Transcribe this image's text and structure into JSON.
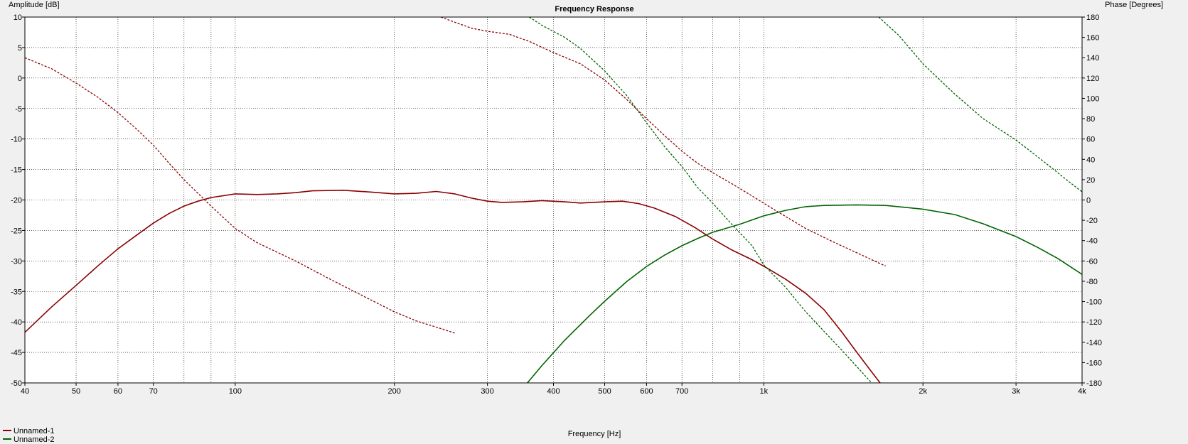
{
  "chart_data": {
    "type": "line",
    "title": "Frequency Response",
    "xlabel": "Frequency [Hz]",
    "ylabel": "Amplitude [dB]",
    "y2label": "Phase [Degrees]",
    "x_scale": "log",
    "xlim": [
      40,
      4000
    ],
    "ylim": [
      -50,
      10
    ],
    "y2lim": [
      -180,
      180
    ],
    "grid": true,
    "legend_position": "bottom-left",
    "x_ticks": [
      {
        "value": 40,
        "label": "40"
      },
      {
        "value": 50,
        "label": "50"
      },
      {
        "value": 60,
        "label": "60"
      },
      {
        "value": 70,
        "label": "70"
      },
      {
        "value": 100,
        "label": "100"
      },
      {
        "value": 200,
        "label": "200"
      },
      {
        "value": 300,
        "label": "300"
      },
      {
        "value": 400,
        "label": "400"
      },
      {
        "value": 500,
        "label": "500"
      },
      {
        "value": 600,
        "label": "600"
      },
      {
        "value": 700,
        "label": "700"
      },
      {
        "value": 1000,
        "label": "1k"
      },
      {
        "value": 2000,
        "label": "2k"
      },
      {
        "value": 3000,
        "label": "3k"
      },
      {
        "value": 4000,
        "label": "4k"
      }
    ],
    "x_minor_gridlines": [
      80,
      90,
      800,
      900
    ],
    "y_ticks": [
      10,
      5,
      0,
      -5,
      -10,
      -15,
      -20,
      -25,
      -30,
      -35,
      -40,
      -45,
      -50
    ],
    "y2_ticks": [
      180,
      160,
      140,
      120,
      100,
      80,
      60,
      40,
      20,
      0,
      -20,
      -40,
      -60,
      -80,
      -100,
      -120,
      -140,
      -160,
      -180
    ],
    "series": [
      {
        "name": "Unnamed-1",
        "color": "#8b0000",
        "amplitude": [
          [
            40,
            -41.7
          ],
          [
            45,
            -37.5
          ],
          [
            50,
            -34.0
          ],
          [
            55,
            -30.8
          ],
          [
            60,
            -28.0
          ],
          [
            65,
            -25.8
          ],
          [
            70,
            -23.8
          ],
          [
            75,
            -22.2
          ],
          [
            80,
            -21.0
          ],
          [
            85,
            -20.2
          ],
          [
            90,
            -19.6
          ],
          [
            100,
            -19.0
          ],
          [
            110,
            -19.1
          ],
          [
            120,
            -19.0
          ],
          [
            130,
            -18.8
          ],
          [
            140,
            -18.5
          ],
          [
            160,
            -18.4
          ],
          [
            180,
            -18.7
          ],
          [
            200,
            -19.0
          ],
          [
            220,
            -18.9
          ],
          [
            240,
            -18.6
          ],
          [
            260,
            -19.0
          ],
          [
            280,
            -19.7
          ],
          [
            300,
            -20.2
          ],
          [
            320,
            -20.4
          ],
          [
            350,
            -20.3
          ],
          [
            380,
            -20.1
          ],
          [
            420,
            -20.3
          ],
          [
            450,
            -20.5
          ],
          [
            500,
            -20.3
          ],
          [
            540,
            -20.2
          ],
          [
            580,
            -20.6
          ],
          [
            620,
            -21.3
          ],
          [
            680,
            -22.7
          ],
          [
            740,
            -24.5
          ],
          [
            800,
            -26.4
          ],
          [
            870,
            -28.2
          ],
          [
            950,
            -29.8
          ],
          [
            1020,
            -31.3
          ],
          [
            1100,
            -33.0
          ],
          [
            1200,
            -35.3
          ],
          [
            1300,
            -38.0
          ],
          [
            1400,
            -41.5
          ],
          [
            1500,
            -45.0
          ],
          [
            1600,
            -48.2
          ],
          [
            1660,
            -50.0
          ]
        ],
        "phase": [
          [
            40,
            140
          ],
          [
            45,
            129
          ],
          [
            50,
            115
          ],
          [
            55,
            101
          ],
          [
            60,
            86
          ],
          [
            65,
            70
          ],
          [
            70,
            54
          ],
          [
            75,
            36
          ],
          [
            80,
            20
          ],
          [
            90,
            -6
          ],
          [
            100,
            -28
          ],
          [
            110,
            -42
          ],
          [
            130,
            -60
          ],
          [
            150,
            -77
          ],
          [
            180,
            -98
          ],
          [
            200,
            -110
          ],
          [
            220,
            -119
          ],
          [
            250,
            -128
          ],
          [
            260,
            -131
          ],
          [
            245,
            180
          ],
          [
            260,
            175
          ],
          [
            280,
            169
          ],
          [
            300,
            166
          ],
          [
            330,
            163
          ],
          [
            360,
            156
          ],
          [
            400,
            145
          ],
          [
            450,
            134
          ],
          [
            500,
            118
          ],
          [
            550,
            99
          ],
          [
            600,
            80
          ],
          [
            650,
            63
          ],
          [
            700,
            48
          ],
          [
            750,
            36
          ],
          [
            800,
            27
          ],
          [
            870,
            16
          ],
          [
            950,
            4
          ],
          [
            1050,
            -10
          ],
          [
            1200,
            -28
          ],
          [
            1350,
            -41
          ],
          [
            1500,
            -52
          ],
          [
            1650,
            -62
          ],
          [
            1700,
            -65
          ]
        ]
      },
      {
        "name": "Unnamed-2",
        "color": "#006400",
        "amplitude": [
          [
            357,
            -50.0
          ],
          [
            380,
            -47.2
          ],
          [
            420,
            -43.0
          ],
          [
            470,
            -38.8
          ],
          [
            500,
            -36.6
          ],
          [
            550,
            -33.4
          ],
          [
            600,
            -30.9
          ],
          [
            650,
            -29.0
          ],
          [
            700,
            -27.5
          ],
          [
            750,
            -26.3
          ],
          [
            800,
            -25.3
          ],
          [
            900,
            -24.0
          ],
          [
            1000,
            -22.6
          ],
          [
            1100,
            -21.7
          ],
          [
            1200,
            -21.1
          ],
          [
            1300,
            -20.9
          ],
          [
            1500,
            -20.8
          ],
          [
            1700,
            -20.9
          ],
          [
            2000,
            -21.5
          ],
          [
            2300,
            -22.4
          ],
          [
            2600,
            -23.9
          ],
          [
            3000,
            -26.0
          ],
          [
            3300,
            -27.8
          ],
          [
            3600,
            -29.6
          ],
          [
            4000,
            -32.2
          ]
        ],
        "phase": [
          [
            357,
            -180
          ],
          [
            360,
            180
          ],
          [
            380,
            172
          ],
          [
            420,
            160
          ],
          [
            450,
            149
          ],
          [
            500,
            127
          ],
          [
            550,
            103
          ],
          [
            600,
            76
          ],
          [
            650,
            52
          ],
          [
            700,
            33
          ],
          [
            750,
            12
          ],
          [
            800,
            -3
          ],
          [
            870,
            -24
          ],
          [
            950,
            -45
          ],
          [
            1000,
            -64
          ],
          [
            1100,
            -86
          ],
          [
            1200,
            -110
          ],
          [
            1400,
            -147
          ],
          [
            1600,
            -180
          ],
          [
            1650,
            180
          ],
          [
            1800,
            162
          ],
          [
            2000,
            134
          ],
          [
            2300,
            104
          ],
          [
            2600,
            80
          ],
          [
            3000,
            59
          ],
          [
            3400,
            37
          ],
          [
            3800,
            17
          ],
          [
            4000,
            8
          ]
        ]
      }
    ]
  }
}
